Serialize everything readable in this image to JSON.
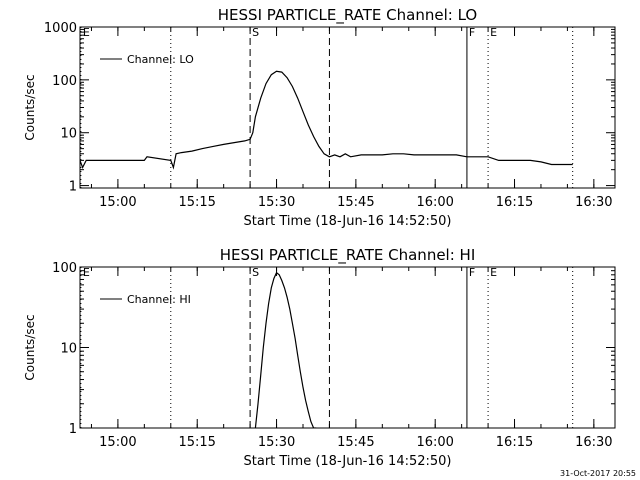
{
  "footer": {
    "timestamp": "31-Oct-2017 20:55"
  },
  "chart_data": [
    {
      "type": "line",
      "title": "HESSI PARTICLE_RATE Channel: LO",
      "xlabel": "Start Time (18-Jun-16 14:52:50)",
      "ylabel": "Counts/sec",
      "yscale": "log",
      "ylim": [
        0.9,
        1000
      ],
      "xlim": [
        "14:52:50",
        "16:34:00"
      ],
      "x_ticks": [
        "15:00",
        "15:15",
        "15:30",
        "15:45",
        "16:00",
        "16:15",
        "16:30"
      ],
      "y_ticks": [
        "1",
        "10",
        "100",
        "1000"
      ],
      "legend": {
        "position": "top-left",
        "entries": [
          "Channel: LO"
        ]
      },
      "markers": [
        {
          "label": "E",
          "time": "14:53:00",
          "style": "dotted"
        },
        {
          "label": "",
          "time": "15:10:00",
          "style": "dotted"
        },
        {
          "label": "S",
          "time": "15:25:00",
          "style": "dashed"
        },
        {
          "label": "",
          "time": "15:40:00",
          "style": "dashed"
        },
        {
          "label": "F",
          "time": "16:06:00",
          "style": "solid"
        },
        {
          "label": "E",
          "time": "16:10:00",
          "style": "dotted"
        },
        {
          "label": "",
          "time": "16:26:00",
          "style": "dotted"
        }
      ],
      "series": [
        {
          "name": "Channel: LO",
          "x": [
            "14:52:50",
            "14:53:20",
            "14:54:00",
            "15:05:00",
            "15:05:30",
            "15:10:00",
            "15:10:30",
            "15:11:00",
            "15:12:00",
            "15:14:00",
            "15:16:00",
            "15:18:00",
            "15:20:00",
            "15:22:00",
            "15:24:00",
            "15:25:00",
            "15:25:30",
            "15:26:00",
            "15:27:00",
            "15:28:00",
            "15:29:00",
            "15:30:00",
            "15:31:00",
            "15:32:00",
            "15:33:00",
            "15:34:00",
            "15:35:00",
            "15:36:00",
            "15:37:00",
            "15:38:00",
            "15:39:00",
            "15:40:00",
            "15:41:00",
            "15:42:00",
            "15:43:00",
            "15:44:00",
            "15:46:00",
            "15:48:00",
            "15:50:00",
            "15:52:00",
            "15:54:00",
            "15:56:00",
            "15:58:00",
            "16:00:00",
            "16:02:00",
            "16:04:00",
            "16:06:00",
            "16:08:00",
            "16:10:00",
            "16:12:00",
            "16:14:00",
            "16:16:00",
            "16:18:00",
            "16:20:00",
            "16:22:00",
            "16:24:00",
            "16:26:00"
          ],
          "values": [
            3.0,
            2.2,
            3.0,
            3.0,
            3.5,
            3.0,
            2.2,
            4.0,
            4.2,
            4.5,
            5.0,
            5.5,
            6.0,
            6.5,
            7.0,
            7.5,
            10,
            20,
            45,
            85,
            125,
            145,
            140,
            110,
            75,
            45,
            25,
            14,
            8.5,
            5.5,
            4.0,
            3.5,
            3.8,
            3.5,
            4.0,
            3.5,
            3.8,
            3.8,
            3.8,
            4.0,
            4.0,
            3.8,
            3.8,
            3.8,
            3.8,
            3.8,
            3.5,
            3.5,
            3.5,
            3.0,
            3.0,
            3.0,
            3.0,
            2.8,
            2.5,
            2.5,
            2.5
          ]
        }
      ]
    },
    {
      "type": "line",
      "title": "HESSI PARTICLE_RATE Channel: HI",
      "xlabel": "Start Time (18-Jun-16 14:52:50)",
      "ylabel": "Counts/sec",
      "yscale": "log",
      "ylim": [
        1,
        100
      ],
      "xlim": [
        "14:52:50",
        "16:34:00"
      ],
      "x_ticks": [
        "15:00",
        "15:15",
        "15:30",
        "15:45",
        "16:00",
        "16:15",
        "16:30"
      ],
      "y_ticks": [
        "1",
        "10",
        "100"
      ],
      "legend": {
        "position": "top-left",
        "entries": [
          "Channel: HI"
        ]
      },
      "markers": [
        {
          "label": "E",
          "time": "14:53:00",
          "style": "dotted"
        },
        {
          "label": "",
          "time": "15:10:00",
          "style": "dotted"
        },
        {
          "label": "S",
          "time": "15:25:00",
          "style": "dashed"
        },
        {
          "label": "",
          "time": "15:40:00",
          "style": "dashed"
        },
        {
          "label": "F",
          "time": "16:06:00",
          "style": "solid"
        },
        {
          "label": "E",
          "time": "16:10:00",
          "style": "dotted"
        },
        {
          "label": "",
          "time": "16:26:00",
          "style": "dotted"
        }
      ],
      "series": [
        {
          "name": "Channel: HI",
          "x": [
            "15:26:00",
            "15:26:30",
            "15:27:00",
            "15:27:30",
            "15:28:00",
            "15:28:30",
            "15:29:00",
            "15:29:30",
            "15:30:00",
            "15:30:30",
            "15:31:00",
            "15:31:30",
            "15:32:00",
            "15:32:30",
            "15:33:00",
            "15:33:30",
            "15:34:00",
            "15:34:30",
            "15:35:00",
            "15:35:30",
            "15:36:00",
            "15:36:30",
            "15:37:00",
            "15:37:30"
          ],
          "values": [
            1.0,
            2.0,
            4.5,
            10,
            20,
            35,
            55,
            72,
            85,
            80,
            68,
            55,
            42,
            30,
            20,
            13,
            8.0,
            5.0,
            3.2,
            2.2,
            1.6,
            1.2,
            1.0,
            1.0
          ]
        }
      ]
    }
  ]
}
